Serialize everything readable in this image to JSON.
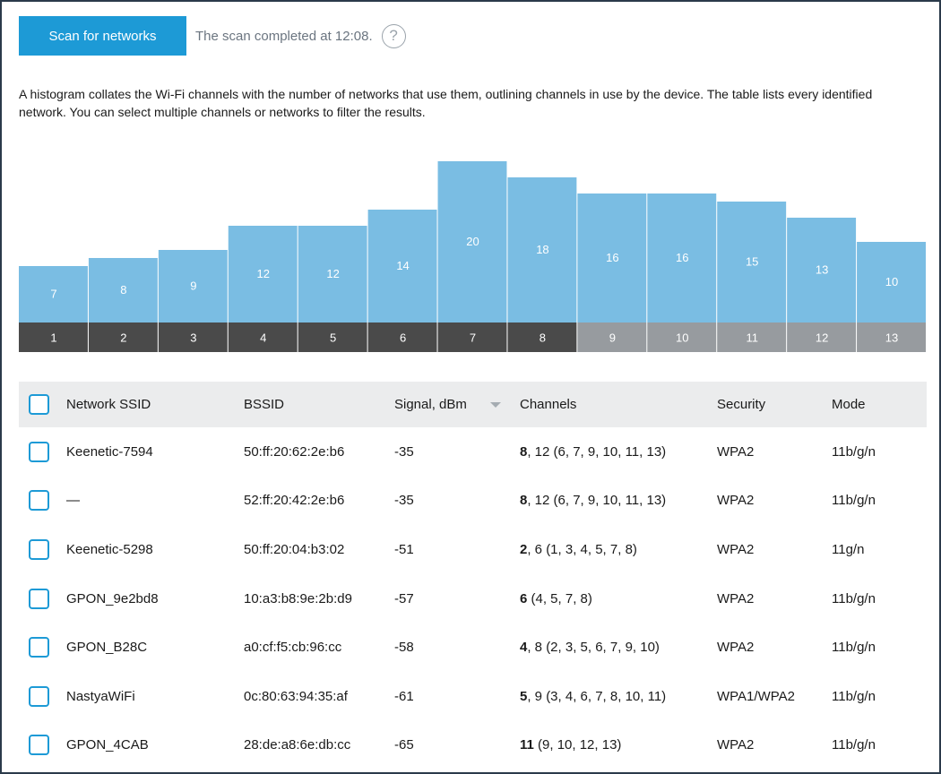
{
  "toolbar": {
    "scan_label": "Scan for networks",
    "status": "The scan completed at 12:08.",
    "help_glyph": "?"
  },
  "description": "A histogram collates the Wi-Fi channels with the number of networks that use them, outlining channels in use by the device. The table lists every identified network. You can select multiple channels or networks to filter the results.",
  "chart_data": {
    "type": "bar",
    "categories": [
      "1",
      "2",
      "3",
      "4",
      "5",
      "6",
      "7",
      "8",
      "9",
      "10",
      "11",
      "12",
      "13"
    ],
    "values": [
      7,
      8,
      9,
      12,
      12,
      14,
      20,
      18,
      16,
      16,
      15,
      13,
      10
    ],
    "highlighted_channels": [
      "1",
      "2",
      "3",
      "4",
      "5",
      "6",
      "7",
      "8"
    ],
    "ylim": [
      0,
      20
    ],
    "grid": false,
    "colors": {
      "bar": "#7abde3",
      "label_highlight": "#4a4a4a",
      "label_normal": "#979b9f",
      "text": "#ffffff"
    }
  },
  "table": {
    "headers": {
      "ssid": "Network SSID",
      "bssid": "BSSID",
      "signal": "Signal, dBm",
      "channels": "Channels",
      "security": "Security",
      "mode": "Mode"
    },
    "rows": [
      {
        "ssid": "Keenetic-7594",
        "bssid": "50:ff:20:62:2e:b6",
        "signal": "-35",
        "channel_primary": "8",
        "channel_rest": ", 12 (6, 7, 9, 10, 11, 13)",
        "security": "WPA2",
        "mode": "11b/g/n"
      },
      {
        "ssid": "—",
        "bssid": "52:ff:20:42:2e:b6",
        "signal": "-35",
        "channel_primary": "8",
        "channel_rest": ", 12 (6, 7, 9, 10, 11, 13)",
        "security": "WPA2",
        "mode": "11b/g/n"
      },
      {
        "ssid": "Keenetic-5298",
        "bssid": "50:ff:20:04:b3:02",
        "signal": "-51",
        "channel_primary": "2",
        "channel_rest": ", 6 (1, 3, 4, 5, 7, 8)",
        "security": "WPA2",
        "mode": "11g/n"
      },
      {
        "ssid": "GPON_9e2bd8",
        "bssid": "10:a3:b8:9e:2b:d9",
        "signal": "-57",
        "channel_primary": "6",
        "channel_rest": " (4, 5, 7, 8)",
        "security": "WPA2",
        "mode": "11b/g/n"
      },
      {
        "ssid": "GPON_B28C",
        "bssid": "a0:cf:f5:cb:96:cc",
        "signal": "-58",
        "channel_primary": "4",
        "channel_rest": ", 8 (2, 3, 5, 6, 7, 9, 10)",
        "security": "WPA2",
        "mode": "11b/g/n"
      },
      {
        "ssid": "NastyaWiFi",
        "bssid": "0c:80:63:94:35:af",
        "signal": "-61",
        "channel_primary": "5",
        "channel_rest": ", 9 (3, 4, 6, 7, 8, 10, 11)",
        "security": "WPA1/WPA2",
        "mode": "11b/g/n"
      },
      {
        "ssid": "GPON_4CAB",
        "bssid": "28:de:a8:6e:db:cc",
        "signal": "-65",
        "channel_primary": "11",
        "channel_rest": " (9, 10, 12, 13)",
        "security": "WPA2",
        "mode": "11b/g/n"
      }
    ]
  }
}
